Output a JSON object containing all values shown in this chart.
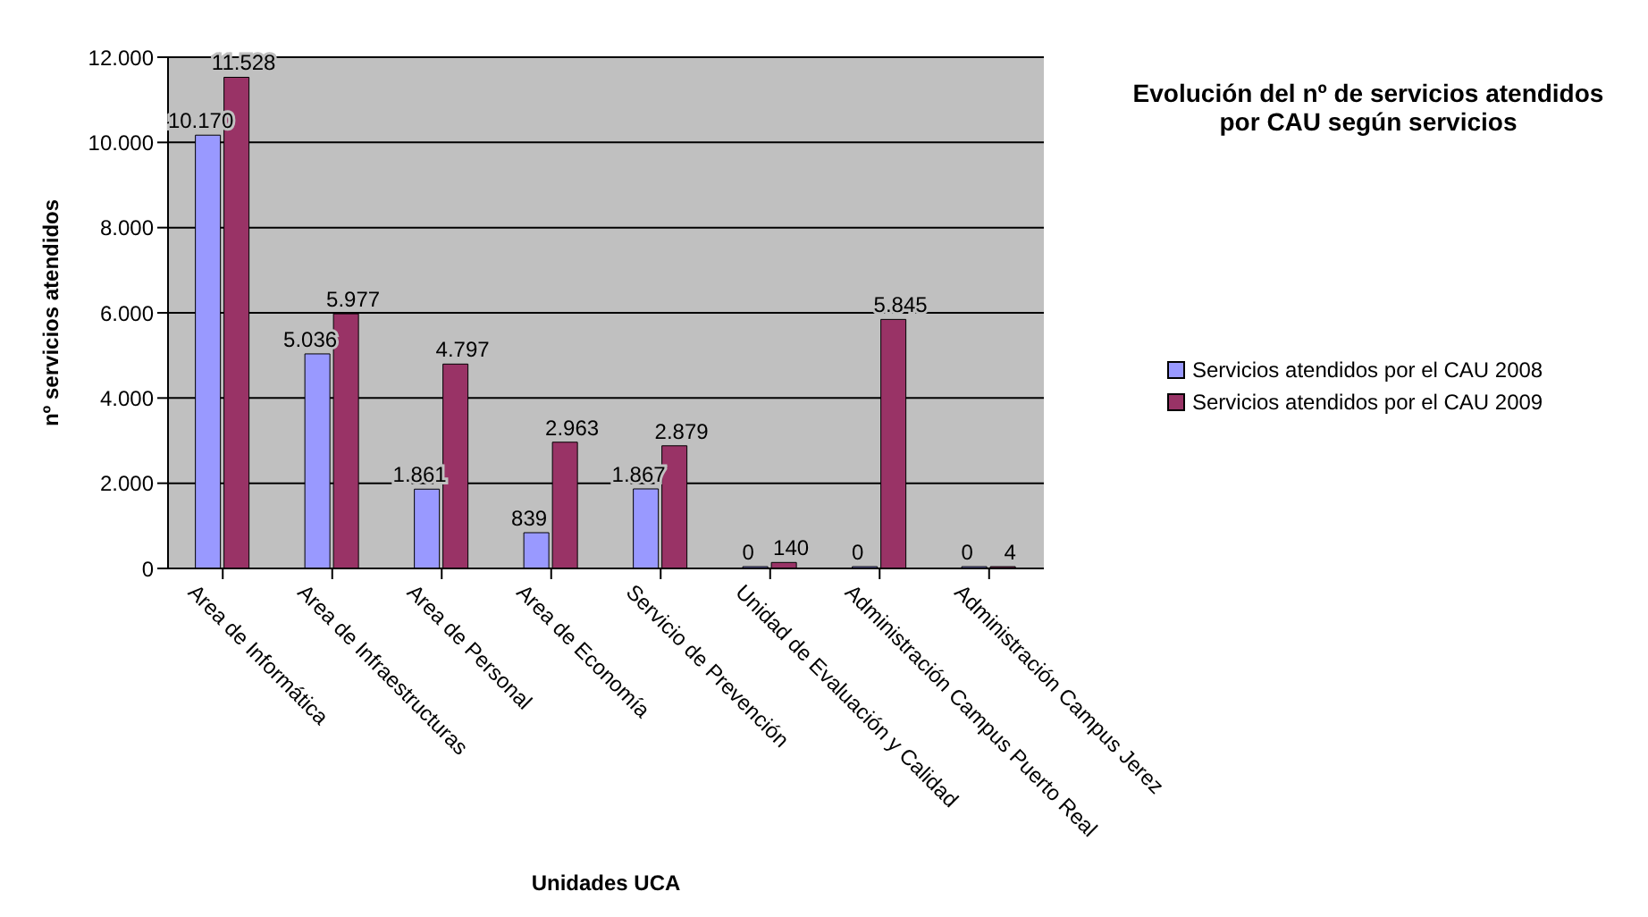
{
  "chart_data": {
    "type": "bar",
    "title": "Evolución del nº de servicios atendidos por CAU según servicios",
    "xlabel": "Unidades UCA",
    "ylabel": "nº servicios atendidos",
    "categories": [
      "Area de Informática",
      "Area de Infraestructuras",
      "Area de Personal",
      "Area de Economía",
      "Servicio de Prevención",
      "Unidad de Evaluación y Calidad",
      "Administración Campus Puerto Real",
      "Administración Campus Jerez"
    ],
    "series": [
      {
        "name": "Servicios atendidos por el CAU 2008",
        "color": "#9999ff",
        "values": [
          10170,
          5036,
          1861,
          839,
          1867,
          0,
          0,
          0
        ],
        "value_labels": [
          "10.170",
          "5.036",
          "1.861",
          "839",
          "1.867",
          "0",
          "0",
          "0"
        ]
      },
      {
        "name": "Servicios atendidos por el CAU 2009",
        "color": "#993366",
        "values": [
          11528,
          5977,
          4797,
          2963,
          2879,
          140,
          5845,
          4
        ],
        "value_labels": [
          "11.528",
          "5.977",
          "4.797",
          "2.963",
          "2.879",
          "140",
          "5.845",
          "4"
        ]
      }
    ],
    "ylim": [
      0,
      12000
    ],
    "yticks": [
      {
        "value": 0,
        "label": "0"
      },
      {
        "value": 2000,
        "label": "2.000"
      },
      {
        "value": 4000,
        "label": "4.000"
      },
      {
        "value": 6000,
        "label": "6.000"
      },
      {
        "value": 8000,
        "label": "8.000"
      },
      {
        "value": 10000,
        "label": "10.000"
      },
      {
        "value": 12000,
        "label": "12.000"
      }
    ],
    "grid": "y",
    "legend": "right"
  }
}
